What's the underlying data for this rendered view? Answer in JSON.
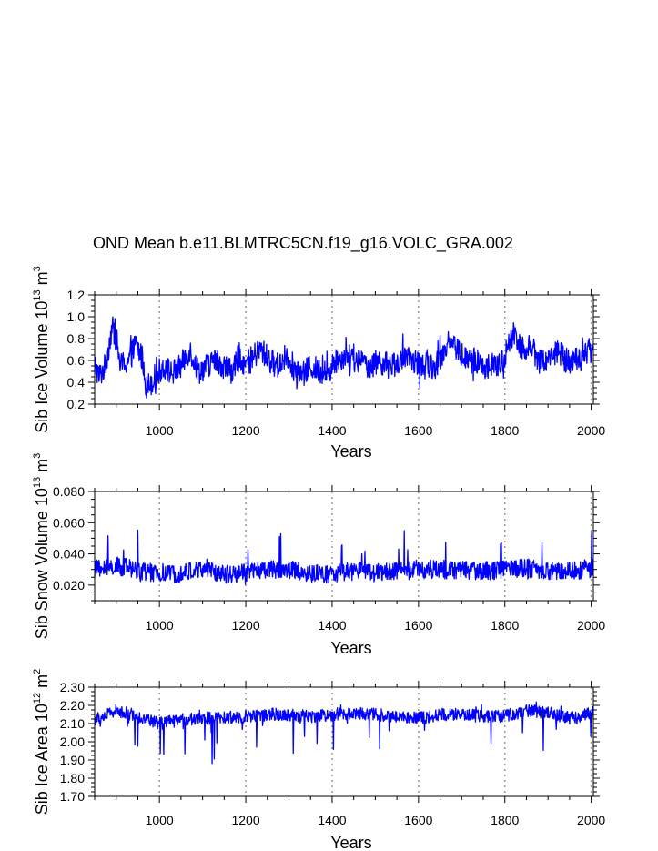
{
  "title": "OND Mean b.e11.BLMTRC5CN.f19_g16.VOLC_GRA.002",
  "colors": {
    "series": "#0000ff",
    "axis": "#000000",
    "refline": "#999999"
  },
  "chart_data": [
    {
      "type": "line",
      "ylabel_main": "Sib Ice Volume 10",
      "ylabel_exp": "13",
      "ylabel_unit": "m",
      "ylabel_unit_exp": "3",
      "xlabel": "Years",
      "xlim": [
        850,
        2005
      ],
      "ylim": [
        0.2,
        1.2
      ],
      "xticks": [
        1000,
        1200,
        1400,
        1600,
        1800,
        2000
      ],
      "xtick_labels": [
        "1000",
        "1200",
        "1400",
        "1600",
        "1800",
        "2000"
      ],
      "yticks": [
        0.2,
        0.4,
        0.6,
        0.8,
        1.0,
        1.2
      ],
      "ytick_labels": [
        "0.2",
        "0.4",
        "0.6",
        "0.8",
        "1.0",
        "1.2"
      ],
      "ref_lines_x": [
        1000,
        1200,
        1400,
        1600,
        1800,
        2000
      ],
      "series_name": "Sib Ice Volume",
      "keypoints": [
        [
          850,
          0.58
        ],
        [
          860,
          0.45
        ],
        [
          875,
          0.55
        ],
        [
          890,
          0.9
        ],
        [
          900,
          0.8
        ],
        [
          910,
          0.55
        ],
        [
          930,
          0.6
        ],
        [
          945,
          0.75
        ],
        [
          960,
          0.62
        ],
        [
          970,
          0.35
        ],
        [
          990,
          0.45
        ],
        [
          1010,
          0.55
        ],
        [
          1030,
          0.48
        ],
        [
          1050,
          0.55
        ],
        [
          1070,
          0.7
        ],
        [
          1090,
          0.5
        ],
        [
          1110,
          0.55
        ],
        [
          1130,
          0.6
        ],
        [
          1150,
          0.55
        ],
        [
          1170,
          0.5
        ],
        [
          1185,
          0.65
        ],
        [
          1200,
          0.55
        ],
        [
          1215,
          0.62
        ],
        [
          1235,
          0.7
        ],
        [
          1255,
          0.6
        ],
        [
          1275,
          0.55
        ],
        [
          1295,
          0.65
        ],
        [
          1310,
          0.55
        ],
        [
          1330,
          0.45
        ],
        [
          1350,
          0.55
        ],
        [
          1370,
          0.5
        ],
        [
          1390,
          0.48
        ],
        [
          1410,
          0.6
        ],
        [
          1430,
          0.65
        ],
        [
          1450,
          0.6
        ],
        [
          1470,
          0.58
        ],
        [
          1490,
          0.55
        ],
        [
          1510,
          0.6
        ],
        [
          1530,
          0.55
        ],
        [
          1550,
          0.58
        ],
        [
          1570,
          0.6
        ],
        [
          1590,
          0.6
        ],
        [
          1610,
          0.55
        ],
        [
          1630,
          0.55
        ],
        [
          1650,
          0.6
        ],
        [
          1670,
          0.8
        ],
        [
          1690,
          0.7
        ],
        [
          1710,
          0.6
        ],
        [
          1730,
          0.6
        ],
        [
          1750,
          0.55
        ],
        [
          1770,
          0.55
        ],
        [
          1790,
          0.55
        ],
        [
          1810,
          0.75
        ],
        [
          1820,
          0.85
        ],
        [
          1840,
          0.72
        ],
        [
          1860,
          0.72
        ],
        [
          1880,
          0.6
        ],
        [
          1900,
          0.6
        ],
        [
          1920,
          0.7
        ],
        [
          1940,
          0.6
        ],
        [
          1960,
          0.6
        ],
        [
          1980,
          0.65
        ],
        [
          2000,
          0.7
        ],
        [
          2005,
          0.65
        ]
      ],
      "noise_amp": 0.12,
      "spike_up": 0.18,
      "spike_down": 0.15,
      "spike_rate": 0.05
    },
    {
      "type": "line",
      "ylabel_main": "Sib Snow Volume 10",
      "ylabel_exp": "13",
      "ylabel_unit": "m",
      "ylabel_unit_exp": "3",
      "xlabel": "Years",
      "xlim": [
        850,
        2005
      ],
      "ylim": [
        0.01,
        0.08
      ],
      "xticks": [
        1000,
        1200,
        1400,
        1600,
        1800,
        2000
      ],
      "xtick_labels": [
        "1000",
        "1200",
        "1400",
        "1600",
        "1800",
        "2000"
      ],
      "yticks": [
        0.02,
        0.04,
        0.06,
        0.08
      ],
      "ytick_labels": [
        "0.020",
        "0.040",
        "0.060",
        "0.080"
      ],
      "ref_lines_x": [
        1000,
        1200,
        1400,
        1600,
        1800,
        2000
      ],
      "series_name": "Sib Snow Volume",
      "keypoints": [
        [
          850,
          0.03
        ],
        [
          900,
          0.032
        ],
        [
          950,
          0.03
        ],
        [
          1000,
          0.026
        ],
        [
          1050,
          0.028
        ],
        [
          1100,
          0.03
        ],
        [
          1150,
          0.027
        ],
        [
          1200,
          0.028
        ],
        [
          1250,
          0.03
        ],
        [
          1300,
          0.03
        ],
        [
          1350,
          0.027
        ],
        [
          1400,
          0.027
        ],
        [
          1450,
          0.029
        ],
        [
          1500,
          0.028
        ],
        [
          1550,
          0.029
        ],
        [
          1600,
          0.03
        ],
        [
          1650,
          0.03
        ],
        [
          1700,
          0.03
        ],
        [
          1750,
          0.029
        ],
        [
          1800,
          0.03
        ],
        [
          1850,
          0.031
        ],
        [
          1900,
          0.029
        ],
        [
          1950,
          0.029
        ],
        [
          2005,
          0.031
        ]
      ],
      "noise_amp": 0.006,
      "spike_up": 0.022,
      "spike_down": 0.004,
      "spike_rate": 0.06
    },
    {
      "type": "line",
      "ylabel_main": "Sib Ice Area 10",
      "ylabel_exp": "12",
      "ylabel_unit": "m",
      "ylabel_unit_exp": "2",
      "xlabel": "Years",
      "xlim": [
        850,
        2005
      ],
      "ylim": [
        1.7,
        2.3
      ],
      "xticks": [
        1000,
        1200,
        1400,
        1600,
        1800,
        2000
      ],
      "xtick_labels": [
        "1000",
        "1200",
        "1400",
        "1600",
        "1800",
        "2000"
      ],
      "yticks": [
        1.7,
        1.8,
        1.9,
        2.0,
        2.1,
        2.2,
        2.3
      ],
      "ytick_labels": [
        "1.70",
        "1.80",
        "1.90",
        "2.00",
        "2.10",
        "2.20",
        "2.30"
      ],
      "ref_lines_x": [
        1000,
        1200,
        1400,
        1600,
        1800,
        2000
      ],
      "series_name": "Sib Ice Area",
      "keypoints": [
        [
          850,
          2.12
        ],
        [
          900,
          2.17
        ],
        [
          950,
          2.14
        ],
        [
          1000,
          2.1
        ],
        [
          1050,
          2.12
        ],
        [
          1100,
          2.13
        ],
        [
          1150,
          2.13
        ],
        [
          1200,
          2.14
        ],
        [
          1250,
          2.15
        ],
        [
          1300,
          2.15
        ],
        [
          1350,
          2.14
        ],
        [
          1400,
          2.15
        ],
        [
          1450,
          2.16
        ],
        [
          1500,
          2.15
        ],
        [
          1550,
          2.14
        ],
        [
          1600,
          2.13
        ],
        [
          1650,
          2.15
        ],
        [
          1700,
          2.15
        ],
        [
          1750,
          2.14
        ],
        [
          1800,
          2.14
        ],
        [
          1850,
          2.17
        ],
        [
          1900,
          2.16
        ],
        [
          1950,
          2.13
        ],
        [
          2005,
          2.16
        ]
      ],
      "noise_amp": 0.035,
      "spike_up": 0.04,
      "spike_down": 0.22,
      "spike_rate": 0.06
    }
  ]
}
